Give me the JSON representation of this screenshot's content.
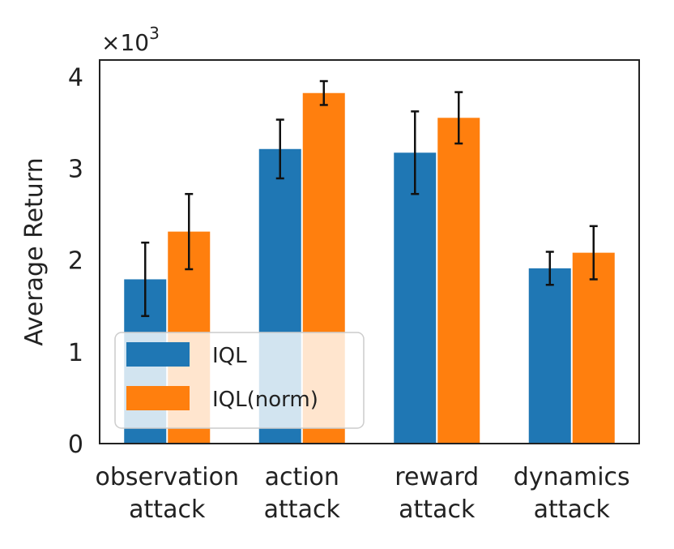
{
  "chart_data": {
    "type": "bar",
    "categories": [
      [
        "observation",
        "attack"
      ],
      [
        "action",
        "attack"
      ],
      [
        "reward",
        "attack"
      ],
      [
        "dynamics",
        "attack"
      ]
    ],
    "series": [
      {
        "name": "IQL",
        "color": "#1f77b4",
        "values": [
          1.79,
          3.21,
          3.17,
          1.91
        ],
        "errors": [
          0.4,
          0.32,
          0.45,
          0.18
        ]
      },
      {
        "name": "IQL(norm)",
        "color": "#ff7f0e",
        "values": [
          2.31,
          3.82,
          3.55,
          2.08
        ],
        "errors": [
          0.41,
          0.13,
          0.28,
          0.29
        ]
      }
    ],
    "ylabel": "Average Return",
    "xlabel": "",
    "ylim": [
      0,
      4.18
    ],
    "yticks": [
      "0",
      "1",
      "2",
      "3",
      "4"
    ],
    "y_multiplier": {
      "base": "×10",
      "exponent": "3"
    },
    "legend_position": "lower-left",
    "grid": false
  }
}
